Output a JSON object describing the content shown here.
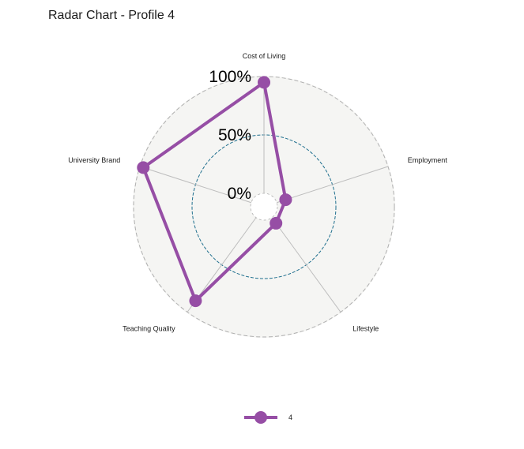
{
  "title": "Radar Chart - Profile 4",
  "colors": {
    "series": "#964ea5",
    "panel": "#f5f5f3",
    "outer_grid": "#b0b0b0",
    "mid_grid": "#1f6f8e",
    "spokes": "#bdbdbd"
  },
  "chart_data": {
    "type": "radar",
    "title": "Radar Chart - Profile 4",
    "axes": [
      "Cost of Living",
      "Employment",
      "Lifestyle",
      "Teaching Quality",
      "University Brand"
    ],
    "grid_labels": [
      "0%",
      "50%",
      "100%"
    ],
    "range": [
      0,
      1
    ],
    "grid_levels": [
      0,
      0.5,
      1
    ],
    "series": [
      {
        "name": "4",
        "values": [
          0.95,
          0.08,
          0.06,
          0.88,
          0.97
        ]
      }
    ],
    "legend_position": "bottom"
  },
  "legend": {
    "label": "4"
  }
}
